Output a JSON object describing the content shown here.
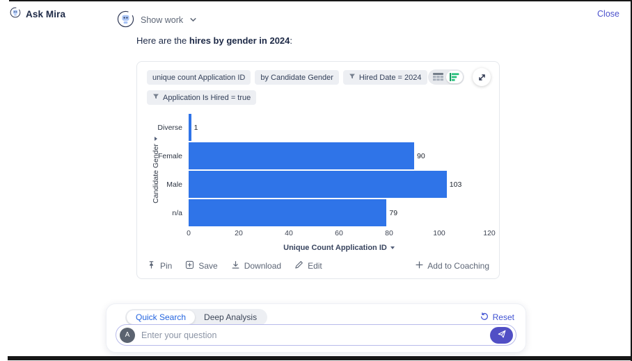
{
  "header": {
    "app_title": "Ask Mira",
    "close_label": "Close"
  },
  "conversation": {
    "show_work_label": "Show work",
    "message": {
      "prefix": "Here are the ",
      "bold": "hires by gender in 2024",
      "suffix": ":"
    }
  },
  "card": {
    "chips": [
      {
        "label": "unique count Application ID",
        "filter_icon": false
      },
      {
        "label": "by Candidate Gender",
        "filter_icon": false
      },
      {
        "label": "Hired Date = 2024",
        "filter_icon": true
      },
      {
        "label": "Application Is Hired = true",
        "filter_icon": true
      }
    ],
    "view_toggle": {
      "selected": "bar-chart",
      "options": [
        "table",
        "bar-chart"
      ]
    },
    "footer": {
      "pin": "Pin",
      "save": "Save",
      "download": "Download",
      "edit": "Edit",
      "add_to_coaching": "Add to Coaching"
    }
  },
  "chart_data": {
    "type": "bar",
    "orientation": "horizontal",
    "categories": [
      "Diverse",
      "Female",
      "Male",
      "n/a"
    ],
    "values": [
      1,
      90,
      103,
      79
    ],
    "xlabel": "Unique Count Application ID",
    "ylabel": "Candidate Gender",
    "xlim": [
      0,
      120
    ],
    "xticks": [
      0,
      20,
      40,
      60,
      80,
      100,
      120
    ],
    "grid": false,
    "show_value_labels": true,
    "bar_color": "#2f74e8"
  },
  "composer": {
    "tabs": [
      {
        "label": "Quick Search",
        "active": true
      },
      {
        "label": "Deep Analysis",
        "active": false
      }
    ],
    "reset_label": "Reset",
    "avatar_letter": "A",
    "input_placeholder": "Enter your question"
  },
  "colors": {
    "accent_indigo": "#4b52cc",
    "tab_active_blue": "#2464df",
    "bar_blue": "#2f74e8",
    "chart_icon_green": "#27c07d",
    "chip_background": "#edeff3"
  }
}
